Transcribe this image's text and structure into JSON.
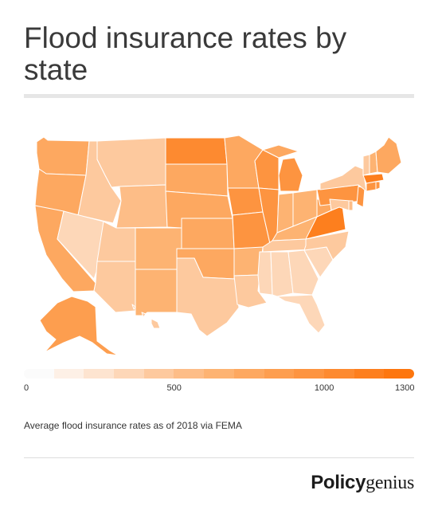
{
  "title": "Flood insurance rates by state",
  "legend": {
    "ticks": [
      "0",
      "500",
      "1000",
      "1300"
    ],
    "tick_values": [
      0,
      500,
      1000,
      1300
    ],
    "max": 1300,
    "colors": [
      "#fbfbfb",
      "#fdf0e6",
      "#fde4d0",
      "#fdd7b8",
      "#fdc99e",
      "#fdbd87",
      "#fdb372",
      "#fda860",
      "#fd9e4f",
      "#fd9440",
      "#fd8a30",
      "#fd7f1e",
      "#fd760e"
    ]
  },
  "caption": "Average flood insurance rates as of 2018 via FEMA",
  "logo": {
    "part1": "Policy",
    "part2": "genius"
  }
}
